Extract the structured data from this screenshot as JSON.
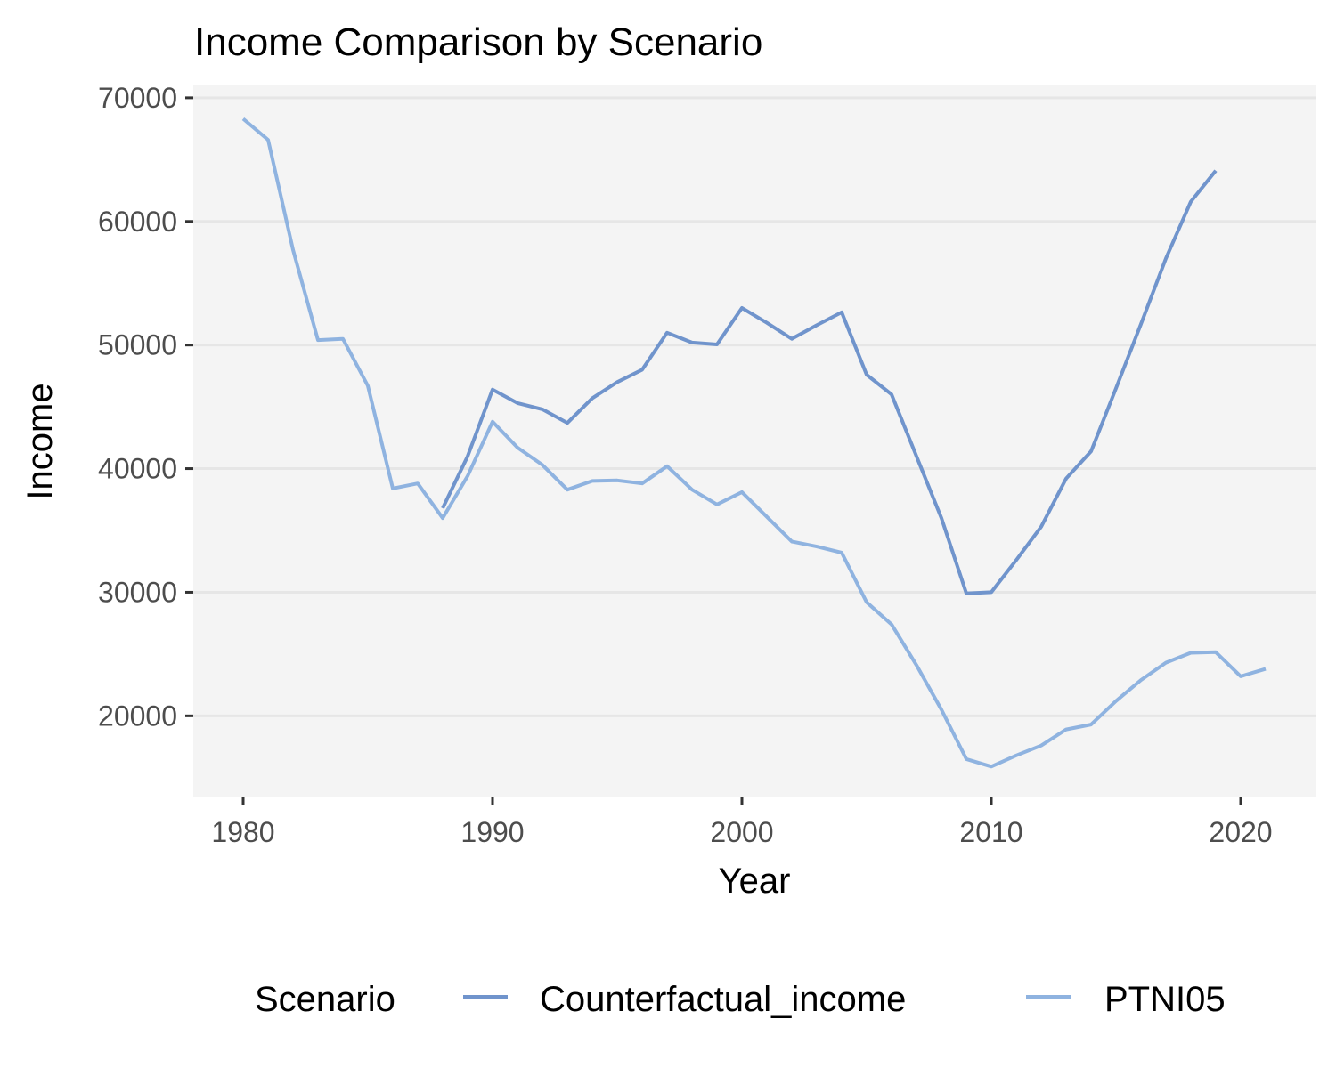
{
  "chart_data": {
    "type": "line",
    "title": "Income Comparison by Scenario",
    "xlabel": "Year",
    "ylabel": "Income",
    "xlim": [
      1978,
      2023
    ],
    "ylim": [
      13400,
      71000
    ],
    "x_ticks": [
      1980,
      1990,
      2000,
      2010,
      2020
    ],
    "y_ticks": [
      20000,
      30000,
      40000,
      50000,
      60000,
      70000
    ],
    "grid": true,
    "legend_position": "bottom",
    "legend_title": "Scenario",
    "series": [
      {
        "name": "Counterfactual_income",
        "color": "#7094cc",
        "x": [
          1988,
          1989,
          1990,
          1991,
          1992,
          1993,
          1994,
          1995,
          1996,
          1997,
          1998,
          1999,
          2000,
          2001,
          2002,
          2003,
          2004,
          2005,
          2006,
          2007,
          2008,
          2009,
          2010,
          2011,
          2012,
          2013,
          2014,
          2015,
          2016,
          2017,
          2018,
          2019
        ],
        "y": [
          36800,
          41000,
          46400,
          45300,
          44800,
          43700,
          45700,
          47000,
          48000,
          51000,
          50200,
          50050,
          53000,
          51800,
          50500,
          51600,
          52650,
          47600,
          46000,
          41000,
          36000,
          29900,
          30000,
          32600,
          35300,
          39200,
          41400,
          46500,
          51700,
          57000,
          61600,
          64100
        ]
      },
      {
        "name": "PTNI05",
        "color": "#8fb3e0",
        "x": [
          1980,
          1981,
          1982,
          1983,
          1984,
          1985,
          1986,
          1987,
          1988,
          1989,
          1990,
          1991,
          1992,
          1993,
          1994,
          1995,
          1996,
          1997,
          1998,
          1999,
          2000,
          2001,
          2002,
          2003,
          2004,
          2005,
          2006,
          2007,
          2008,
          2009,
          2010,
          2011,
          2012,
          2013,
          2014,
          2015,
          2016,
          2017,
          2018,
          2019,
          2020,
          2021
        ],
        "y": [
          68300,
          66600,
          57700,
          50400,
          50500,
          46700,
          38400,
          38800,
          36000,
          39400,
          43800,
          41700,
          40300,
          38300,
          39000,
          39050,
          38800,
          40200,
          38300,
          37100,
          38100,
          36100,
          34100,
          33700,
          33200,
          29200,
          27400,
          24100,
          20500,
          16500,
          15900,
          16800,
          17600,
          18900,
          19300,
          21200,
          22900,
          24300,
          25100,
          25150,
          23200,
          23800
        ]
      }
    ]
  }
}
